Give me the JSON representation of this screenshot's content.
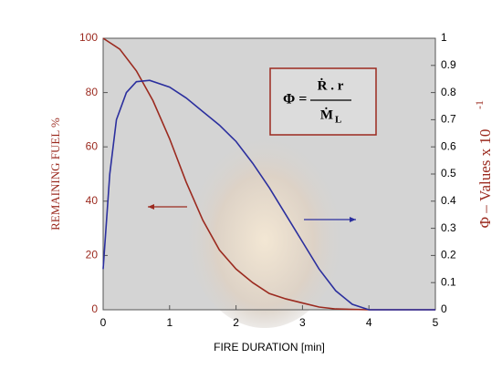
{
  "chart_data": {
    "type": "line",
    "xlabel": "FIRE DURATION  [min]",
    "ylabel": "REMAINING  FUEL  %",
    "y2label": "Φ – Values x 10",
    "y2label_exponent": "-1",
    "xlim": [
      0,
      5
    ],
    "xticks": [
      0,
      1,
      2,
      3,
      4,
      5
    ],
    "ylim": [
      0,
      100
    ],
    "yticks": [
      0,
      20,
      40,
      60,
      80,
      100
    ],
    "y2lim": [
      0,
      1
    ],
    "y2ticks": [
      0,
      0.1,
      0.2,
      0.3,
      0.4,
      0.5,
      0.6,
      0.7,
      0.8,
      0.9,
      1
    ],
    "formula": {
      "lhs": "Φ =",
      "numerator": "Ṙ . r",
      "denominator": "Ṁ",
      "subscript": "L"
    },
    "series": [
      {
        "color": "#9b2a1f",
        "x": [
          0,
          0.25,
          0.5,
          0.75,
          1,
          1.25,
          1.5,
          1.75,
          2,
          2.25,
          2.5,
          2.75,
          3,
          3.25,
          3.5,
          4,
          5
        ],
        "values": [
          100,
          96,
          88,
          77,
          63,
          47,
          33,
          22,
          15,
          10,
          6,
          4,
          2.5,
          1,
          0.3,
          0,
          0
        ]
      },
      {
        "color": "#2b2f9e",
        "axis": "y2",
        "x": [
          0,
          0.1,
          0.2,
          0.35,
          0.5,
          0.7,
          1,
          1.25,
          1.5,
          1.75,
          2,
          2.25,
          2.5,
          2.75,
          3,
          3.25,
          3.5,
          3.75,
          4,
          5
        ],
        "values": [
          0.15,
          0.5,
          0.7,
          0.8,
          0.84,
          0.845,
          0.82,
          0.78,
          0.73,
          0.68,
          0.62,
          0.54,
          0.45,
          0.35,
          0.25,
          0.15,
          0.07,
          0.02,
          0,
          0
        ]
      }
    ]
  }
}
